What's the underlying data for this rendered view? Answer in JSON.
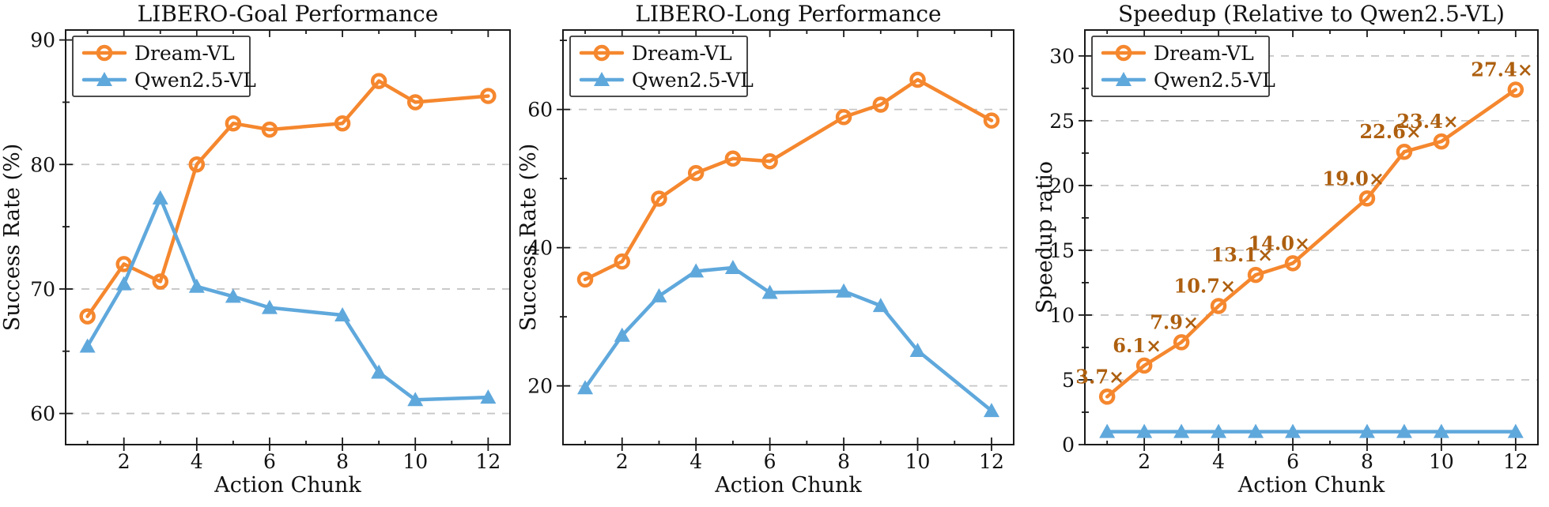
{
  "figure": {
    "background": "#ffffff"
  },
  "colors": {
    "dream": "#F5872E",
    "qwen": "#5FA8DC",
    "annotation": "#AD5F0F",
    "grid": "#C6C6C6",
    "axis": "#1A1A1A",
    "text": "#111111",
    "legend_border": "#333333",
    "legend_bg": "#FFFFFF"
  },
  "chart_data": [
    {
      "type": "line",
      "title": "LIBERO-Goal Performance",
      "xlabel": "Action Chunk",
      "ylabel": "Success Rate (%)",
      "x": [
        1,
        2,
        3,
        4,
        5,
        6,
        8,
        9,
        10,
        12
      ],
      "xticks": [
        2,
        4,
        6,
        8,
        10,
        12
      ],
      "xticks_minor": [
        1,
        3,
        5,
        7,
        9,
        11
      ],
      "xlim": [
        0.4,
        12.6
      ],
      "ylim": [
        57.5,
        90.8
      ],
      "yticks": [
        60,
        70,
        80,
        90
      ],
      "yticks_minor": [
        65,
        75,
        85
      ],
      "grid_y": [
        60,
        70,
        80
      ],
      "legend": {
        "position": "top-left",
        "entries": [
          "Dream-VL",
          "Qwen2.5-VL"
        ]
      },
      "series": [
        {
          "name": "Dream-VL",
          "color_key": "dream",
          "marker": "open-circle",
          "values": [
            67.8,
            72.0,
            70.6,
            80.0,
            83.3,
            82.8,
            83.3,
            86.7,
            85.0,
            85.5
          ]
        },
        {
          "name": "Qwen2.5-VL",
          "color_key": "qwen",
          "marker": "triangle",
          "values": [
            65.4,
            70.4,
            77.3,
            70.2,
            69.4,
            68.5,
            67.9,
            63.3,
            61.1,
            61.3
          ]
        }
      ],
      "annotations": []
    },
    {
      "type": "line",
      "title": "LIBERO-Long Performance",
      "xlabel": "Action Chunk",
      "ylabel": "Success Rate (%)",
      "x": [
        1,
        2,
        3,
        4,
        5,
        6,
        8,
        9,
        10,
        12
      ],
      "xticks": [
        2,
        4,
        6,
        8,
        10,
        12
      ],
      "xticks_minor": [
        1,
        3,
        5,
        7,
        9,
        11
      ],
      "xlim": [
        0.4,
        12.6
      ],
      "ylim": [
        11.5,
        71.5
      ],
      "yticks": [
        20,
        40,
        60
      ],
      "yticks_minor": [
        30,
        50,
        70
      ],
      "grid_y": [
        20,
        40,
        60
      ],
      "legend": {
        "position": "top-left",
        "entries": [
          "Dream-VL",
          "Qwen2.5-VL"
        ]
      },
      "series": [
        {
          "name": "Dream-VL",
          "color_key": "dream",
          "marker": "open-circle",
          "values": [
            35.4,
            38.0,
            47.1,
            50.8,
            52.9,
            52.5,
            58.9,
            60.7,
            64.3,
            58.4
          ]
        },
        {
          "name": "Qwen2.5-VL",
          "color_key": "qwen",
          "marker": "triangle",
          "values": [
            19.7,
            27.3,
            33.0,
            36.6,
            37.1,
            33.5,
            33.7,
            31.6,
            25.1,
            16.4
          ]
        }
      ],
      "annotations": []
    },
    {
      "type": "line",
      "title": "Speedup (Relative to Qwen2.5-VL)",
      "xlabel": "Action Chunk",
      "ylabel": "Speedup ratio",
      "x": [
        1,
        2,
        3,
        4,
        5,
        6,
        8,
        9,
        10,
        12
      ],
      "xticks": [
        2,
        4,
        6,
        8,
        10,
        12
      ],
      "xticks_minor": [
        1,
        3,
        5,
        7,
        9,
        11
      ],
      "xlim": [
        0.4,
        12.6
      ],
      "ylim": [
        0,
        32
      ],
      "yticks": [
        0,
        5,
        10,
        15,
        20,
        25,
        30
      ],
      "yticks_minor": [
        2.5,
        7.5,
        12.5,
        17.5,
        22.5,
        27.5
      ],
      "grid_y": [
        5,
        10,
        15,
        20,
        25,
        30
      ],
      "legend": {
        "position": "top-left",
        "entries": [
          "Dream-VL",
          "Qwen2.5-VL"
        ]
      },
      "series": [
        {
          "name": "Dream-VL",
          "color_key": "dream",
          "marker": "open-circle",
          "values": [
            3.7,
            6.1,
            7.9,
            10.7,
            13.1,
            14.0,
            19.0,
            22.6,
            23.4,
            27.4
          ]
        },
        {
          "name": "Qwen2.5-VL",
          "color_key": "qwen",
          "marker": "triangle",
          "values": [
            1.0,
            1.0,
            1.0,
            1.0,
            1.0,
            1.0,
            1.0,
            1.0,
            1.0,
            1.0
          ]
        }
      ],
      "annotations": [
        {
          "x": 1,
          "value": 3.7,
          "label": "3.7×"
        },
        {
          "x": 2,
          "value": 6.1,
          "label": "6.1×"
        },
        {
          "x": 3,
          "value": 7.9,
          "label": "7.9×"
        },
        {
          "x": 4,
          "value": 10.7,
          "label": "10.7×"
        },
        {
          "x": 5,
          "value": 13.1,
          "label": "13.1×"
        },
        {
          "x": 6,
          "value": 14.0,
          "label": "14.0×"
        },
        {
          "x": 8,
          "value": 19.0,
          "label": "19.0×"
        },
        {
          "x": 9,
          "value": 22.6,
          "label": "22.6×"
        },
        {
          "x": 10,
          "value": 23.4,
          "label": "23.4×"
        },
        {
          "x": 12,
          "value": 27.4,
          "label": "27.4×"
        }
      ]
    }
  ]
}
